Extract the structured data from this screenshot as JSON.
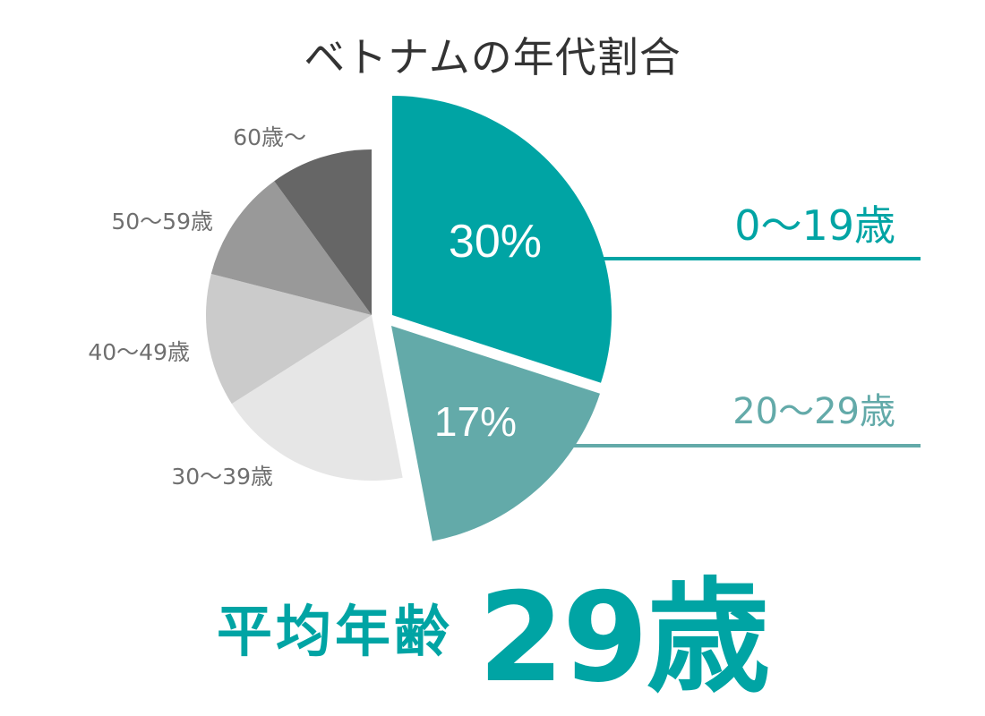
{
  "title": "ベトナムの年代割合",
  "average": {
    "label": "平均年齢",
    "value": "29歳"
  },
  "chart_data": {
    "type": "pie",
    "title": "ベトナムの年代割合",
    "slices": [
      {
        "label": "0〜19歳",
        "value": 30,
        "value_label": "30%",
        "color": "#00a4a4",
        "exploded": true,
        "label_color": "#00a4a4"
      },
      {
        "label": "20〜29歳",
        "value": 17,
        "value_label": "17%",
        "color": "#63aaa9",
        "exploded": true,
        "label_color": "#63aaa9"
      },
      {
        "label": "30〜39歳",
        "value": 19,
        "color": "#e6e6e6",
        "label_color": "#6f6f6f"
      },
      {
        "label": "40〜49歳",
        "value": 13,
        "color": "#cbcbcb",
        "label_color": "#6f6f6f"
      },
      {
        "label": "50〜59歳",
        "value": 11,
        "color": "#999999",
        "label_color": "#6f6f6f"
      },
      {
        "label": "60歳〜",
        "value": 10,
        "color": "#666666",
        "label_color": "#6f6f6f"
      }
    ]
  }
}
